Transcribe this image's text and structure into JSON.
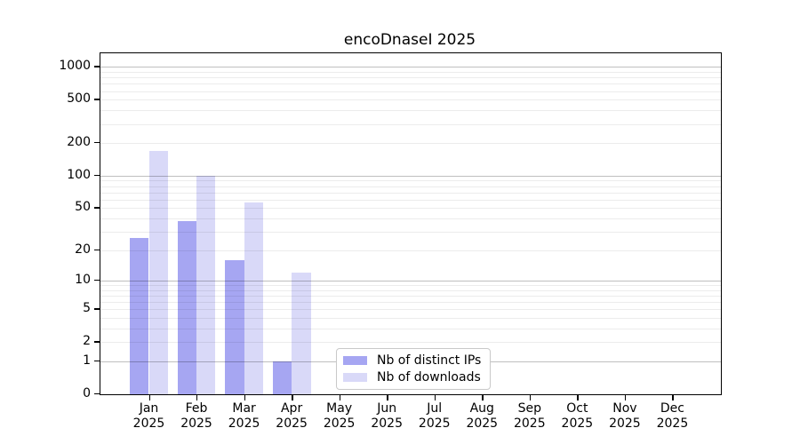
{
  "title": "encoDnaseI 2025",
  "chart_data": {
    "type": "bar",
    "categories": [
      "Jan",
      "Feb",
      "Mar",
      "Apr",
      "May",
      "Jun",
      "Jul",
      "Aug",
      "Sep",
      "Oct",
      "Nov",
      "Dec"
    ],
    "year_label": "2025",
    "series": [
      {
        "name": "Nb of distinct IPs",
        "color": "#a6a6f2",
        "values": [
          26,
          38,
          16,
          1,
          0,
          0,
          0,
          0,
          0,
          0,
          0,
          0
        ]
      },
      {
        "name": "Nb of downloads",
        "color": "#d9d9f8",
        "values": [
          170,
          100,
          56,
          12,
          0,
          0,
          0,
          0,
          0,
          0,
          0,
          0
        ]
      }
    ],
    "yscale": "log1p",
    "ylim": [
      0,
      1320
    ],
    "ytick_labels": [
      0,
      1,
      2,
      5,
      10,
      20,
      50,
      100,
      200,
      500,
      1000
    ],
    "major_gridlines": [
      1,
      10,
      100,
      1000
    ],
    "minor_gridlines": [
      2,
      3,
      4,
      5,
      6,
      7,
      8,
      9,
      20,
      30,
      40,
      50,
      60,
      70,
      80,
      90,
      200,
      300,
      400,
      500,
      600,
      700,
      800,
      900
    ],
    "grid": true,
    "legend_position": "lower center",
    "xlabel": "",
    "ylabel": ""
  }
}
